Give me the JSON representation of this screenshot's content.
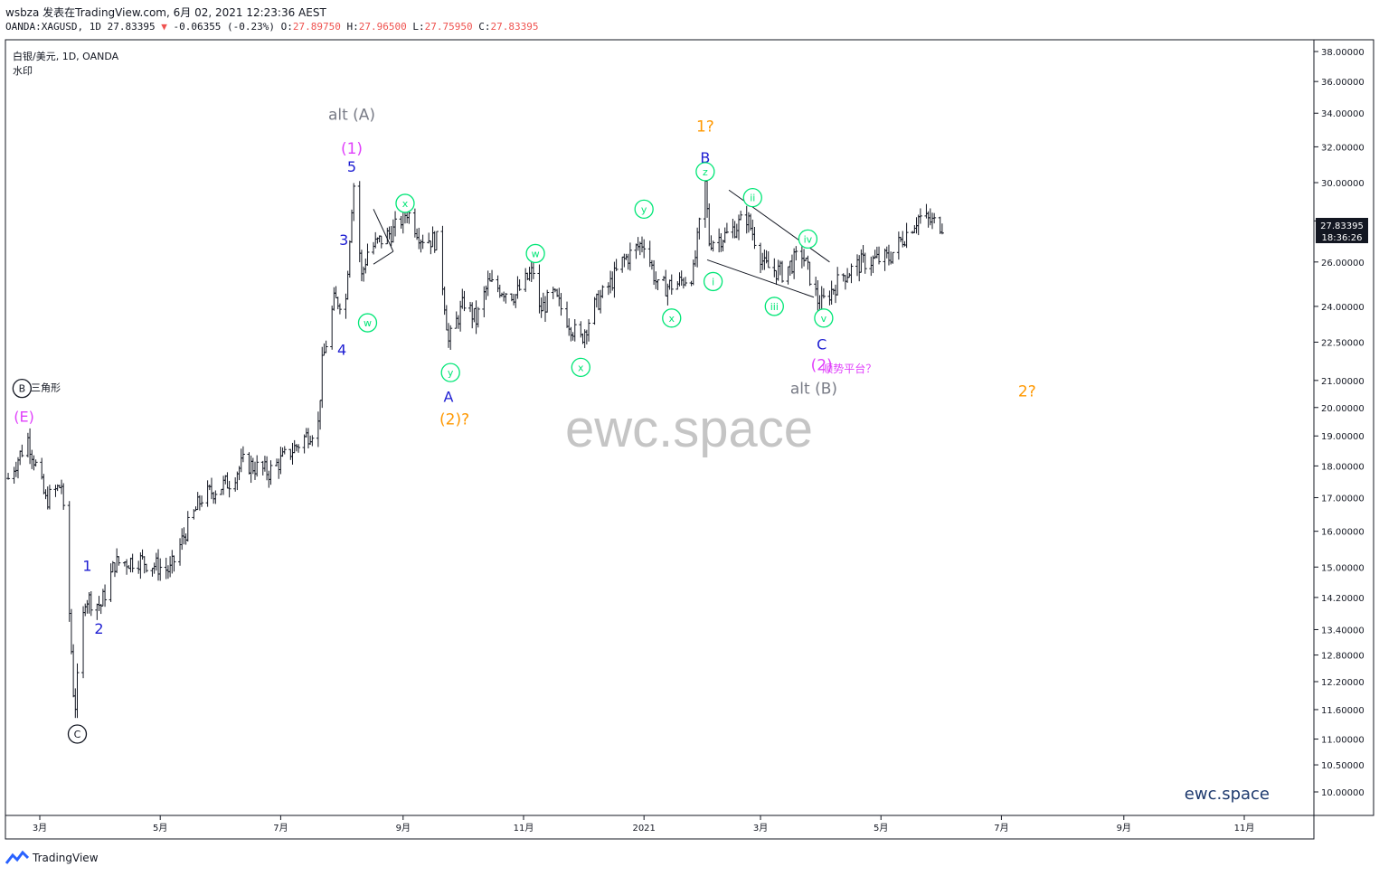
{
  "header": {
    "line1": "wsbza 发表在TradingView.com, 6月 02, 2021 12:23:36 AEST",
    "symbol": "OANDA:XAGUSD, 1D",
    "last": "27.83395",
    "change": "-0.06355 (-0.23%)",
    "o_label": "O:",
    "o": "27.89750",
    "h_label": "H:",
    "h": "27.96500",
    "l_label": "L:",
    "l": "27.75950",
    "c_label": "C:",
    "c": "27.83395",
    "colors": {
      "down": "#ef5350",
      "text": "#131722"
    }
  },
  "legend": {
    "title": "白银/美元, 1D, OANDA",
    "watermark_label": "水印"
  },
  "watermark": "ewc.space",
  "brand_bottom_right": "ewc.space",
  "footer": {
    "brand": "TradingView"
  },
  "price_badge": {
    "price": "27.83395",
    "countdown": "18:36:26",
    "color": "#131722"
  },
  "chart_data": {
    "type": "candlestick",
    "scale": "log",
    "y_ticks": [
      10,
      10.5,
      11,
      11.6,
      12.2,
      12.8,
      13.4,
      14.2,
      15,
      16,
      17,
      18,
      19,
      20,
      21,
      22.5,
      24,
      26,
      28,
      30,
      32,
      34,
      36,
      38
    ],
    "y_tick_labels": [
      "10.00000",
      "10.50000",
      "11.00000",
      "11.60000",
      "12.20000",
      "12.80000",
      "13.40000",
      "14.20000",
      "15.00000",
      "16.00000",
      "17.00000",
      "18.00000",
      "19.00000",
      "20.00000",
      "21.00000",
      "22.50000",
      "24.00000",
      "26.00000",
      "28.00000",
      "30.00000",
      "32.00000",
      "34.00000",
      "36.00000",
      "38.00000"
    ],
    "x_ticks": [
      {
        "label": "3月",
        "date": "2020-03-01"
      },
      {
        "label": "5月",
        "date": "2020-05-01"
      },
      {
        "label": "7月",
        "date": "2020-07-01"
      },
      {
        "label": "9月",
        "date": "2020-09-01"
      },
      {
        "label": "11月",
        "date": "2020-11-01"
      },
      {
        "label": "2021",
        "date": "2021-01-01"
      },
      {
        "label": "3月",
        "date": "2021-03-01"
      },
      {
        "label": "5月",
        "date": "2021-05-01"
      },
      {
        "label": "7月",
        "date": "2021-07-01"
      },
      {
        "label": "9月",
        "date": "2021-09-01"
      },
      {
        "label": "11月",
        "date": "2021-11-01"
      }
    ],
    "x_range": [
      "2020-02-14",
      "2021-12-15"
    ],
    "ohlc_path": [
      [
        "2020-02-14",
        17.6
      ],
      [
        "2020-02-24",
        18.9
      ],
      [
        "2020-03-04",
        16.9
      ],
      [
        "2020-03-12",
        17.4
      ],
      [
        "2020-03-18",
        12.0
      ],
      [
        "2020-03-19",
        11.7
      ],
      [
        "2020-03-24",
        14.2
      ],
      [
        "2020-04-01",
        14.0
      ],
      [
        "2020-04-08",
        15.1
      ],
      [
        "2020-04-20",
        15.2
      ],
      [
        "2020-05-06",
        14.9
      ],
      [
        "2020-05-14",
        16.0
      ],
      [
        "2020-05-22",
        17.0
      ],
      [
        "2020-06-05",
        17.5
      ],
      [
        "2020-06-12",
        18.1
      ],
      [
        "2020-06-25",
        17.8
      ],
      [
        "2020-07-08",
        18.6
      ],
      [
        "2020-07-20",
        19.4
      ],
      [
        "2020-07-22",
        21.6
      ],
      [
        "2020-07-28",
        24.2
      ],
      [
        "2020-08-03",
        24.3
      ],
      [
        "2020-08-06",
        28.8
      ],
      [
        "2020-08-07",
        29.9
      ],
      [
        "2020-08-11",
        25.3
      ],
      [
        "2020-08-14",
        26.5
      ],
      [
        "2020-08-20",
        27.0
      ],
      [
        "2020-08-27",
        27.5
      ],
      [
        "2020-09-03",
        28.5
      ],
      [
        "2020-09-10",
        27.2
      ],
      [
        "2020-09-18",
        27.0
      ],
      [
        "2020-09-21",
        25.0
      ],
      [
        "2020-09-24",
        22.5
      ],
      [
        "2020-10-02",
        24.2
      ],
      [
        "2020-10-08",
        23.4
      ],
      [
        "2020-10-14",
        25.0
      ],
      [
        "2020-10-28",
        24.5
      ],
      [
        "2020-11-06",
        25.6
      ],
      [
        "2020-11-09",
        23.8
      ],
      [
        "2020-11-16",
        24.5
      ],
      [
        "2020-11-27",
        22.9
      ],
      [
        "2020-11-30",
        22.6
      ],
      [
        "2020-12-07",
        24.0
      ],
      [
        "2020-12-15",
        25.0
      ],
      [
        "2020-12-21",
        26.0
      ],
      [
        "2021-01-01",
        27.0
      ],
      [
        "2021-01-08",
        24.8
      ],
      [
        "2021-01-18",
        25.0
      ],
      [
        "2021-01-26",
        25.5
      ],
      [
        "2021-02-01",
        29.9
      ],
      [
        "2021-02-03",
        27.0
      ],
      [
        "2021-02-12",
        27.3
      ],
      [
        "2021-02-22",
        28.2
      ],
      [
        "2021-03-03",
        25.8
      ],
      [
        "2021-03-12",
        25.5
      ],
      [
        "2021-03-22",
        26.4
      ],
      [
        "2021-03-31",
        24.0
      ],
      [
        "2021-04-12",
        25.4
      ],
      [
        "2021-04-22",
        26.0
      ],
      [
        "2021-05-05",
        26.2
      ],
      [
        "2021-05-14",
        27.4
      ],
      [
        "2021-05-20",
        28.2
      ],
      [
        "2021-05-28",
        27.9
      ],
      [
        "2021-06-01",
        27.83
      ]
    ],
    "annotations": [
      {
        "text": "alt (A)",
        "date": "2020-08-06",
        "price": 33.6,
        "color": "#787b86",
        "size": 17
      },
      {
        "text": "(1)",
        "date": "2020-08-06",
        "price": 31.6,
        "color": "#e040fb",
        "size": 17
      },
      {
        "text": "5",
        "date": "2020-08-06",
        "price": 30.6,
        "color": "#1e1ed2",
        "size": 16
      },
      {
        "text": "3",
        "date": "2020-08-02",
        "price": 26.8,
        "color": "#1e1ed2",
        "size": 16
      },
      {
        "text": "4",
        "date": "2020-08-01",
        "price": 22.0,
        "color": "#1e1ed2",
        "size": 16
      },
      {
        "text": "1",
        "date": "2020-03-25",
        "price": 14.9,
        "color": "#1e1ed2",
        "size": 16
      },
      {
        "text": "2",
        "date": "2020-03-31",
        "price": 13.3,
        "color": "#1e1ed2",
        "size": 16
      },
      {
        "text": "(E)",
        "date": "2020-02-22",
        "price": 19.5,
        "color": "#e040fb",
        "size": 16
      },
      {
        "text": "三角形",
        "date": "2020-03-04",
        "price": 20.6,
        "color": "#131722",
        "size": 11
      },
      {
        "text": "A",
        "date": "2020-09-24",
        "price": 20.2,
        "color": "#1e1ed2",
        "size": 16
      },
      {
        "text": "(2)?",
        "date": "2020-09-27",
        "price": 19.4,
        "color": "#ff9800",
        "size": 17
      },
      {
        "text": "1?",
        "date": "2021-02-01",
        "price": 32.9,
        "color": "#ff9800",
        "size": 17
      },
      {
        "text": "B",
        "date": "2021-02-01",
        "price": 31.1,
        "color": "#1e1ed2",
        "size": 16
      },
      {
        "text": "C",
        "date": "2021-04-01",
        "price": 22.2,
        "color": "#1e1ed2",
        "size": 16
      },
      {
        "text": "(2)",
        "date": "2021-04-01",
        "price": 21.4,
        "color": "#e040fb",
        "size": 17
      },
      {
        "text": "顺势平台？",
        "date": "2021-04-15",
        "price": 21.3,
        "color": "#e040fb",
        "size": 12
      },
      {
        "text": "alt (B)",
        "date": "2021-03-28",
        "price": 20.5,
        "color": "#787b86",
        "size": 17
      },
      {
        "text": "2?",
        "date": "2021-07-14",
        "price": 20.4,
        "color": "#ff9800",
        "size": 17
      }
    ],
    "circled_labels": [
      {
        "text": "x",
        "date": "2020-09-02",
        "price": 28.9,
        "color": "#00e676"
      },
      {
        "text": "w",
        "date": "2020-08-14",
        "price": 23.3,
        "color": "#00e676"
      },
      {
        "text": "y",
        "date": "2020-09-25",
        "price": 21.3,
        "color": "#00e676"
      },
      {
        "text": "w",
        "date": "2020-11-07",
        "price": 26.4,
        "color": "#00e676"
      },
      {
        "text": "x",
        "date": "2020-11-30",
        "price": 21.5,
        "color": "#00e676"
      },
      {
        "text": "y",
        "date": "2021-01-01",
        "price": 28.6,
        "color": "#00e676"
      },
      {
        "text": "x",
        "date": "2021-01-15",
        "price": 23.5,
        "color": "#00e676"
      },
      {
        "text": "z",
        "date": "2021-02-01",
        "price": 30.6,
        "color": "#00e676"
      },
      {
        "text": "i",
        "date": "2021-02-05",
        "price": 25.1,
        "color": "#00e676"
      },
      {
        "text": "ii",
        "date": "2021-02-25",
        "price": 29.2,
        "color": "#00e676"
      },
      {
        "text": "iii",
        "date": "2021-03-08",
        "price": 24.0,
        "color": "#00e676"
      },
      {
        "text": "iv",
        "date": "2021-03-25",
        "price": 27.1,
        "color": "#00e676"
      },
      {
        "text": "v",
        "date": "2021-04-02",
        "price": 23.5,
        "color": "#00e676"
      },
      {
        "text": "B",
        "date": "2020-02-21",
        "price": 20.7,
        "color": "#131722"
      },
      {
        "text": "C",
        "date": "2020-03-20",
        "price": 11.1,
        "color": "#131722"
      }
    ],
    "trendlines": [
      {
        "from": [
          "2020-08-17",
          28.6
        ],
        "to": [
          "2020-08-27",
          26.5
        ]
      },
      {
        "from": [
          "2020-08-17",
          25.9
        ],
        "to": [
          "2020-08-27",
          26.5
        ]
      },
      {
        "from": [
          "2021-02-13",
          29.6
        ],
        "to": [
          "2021-04-05",
          26.0
        ]
      },
      {
        "from": [
          "2021-02-02",
          26.1
        ],
        "to": [
          "2021-03-28",
          24.4
        ]
      }
    ]
  }
}
